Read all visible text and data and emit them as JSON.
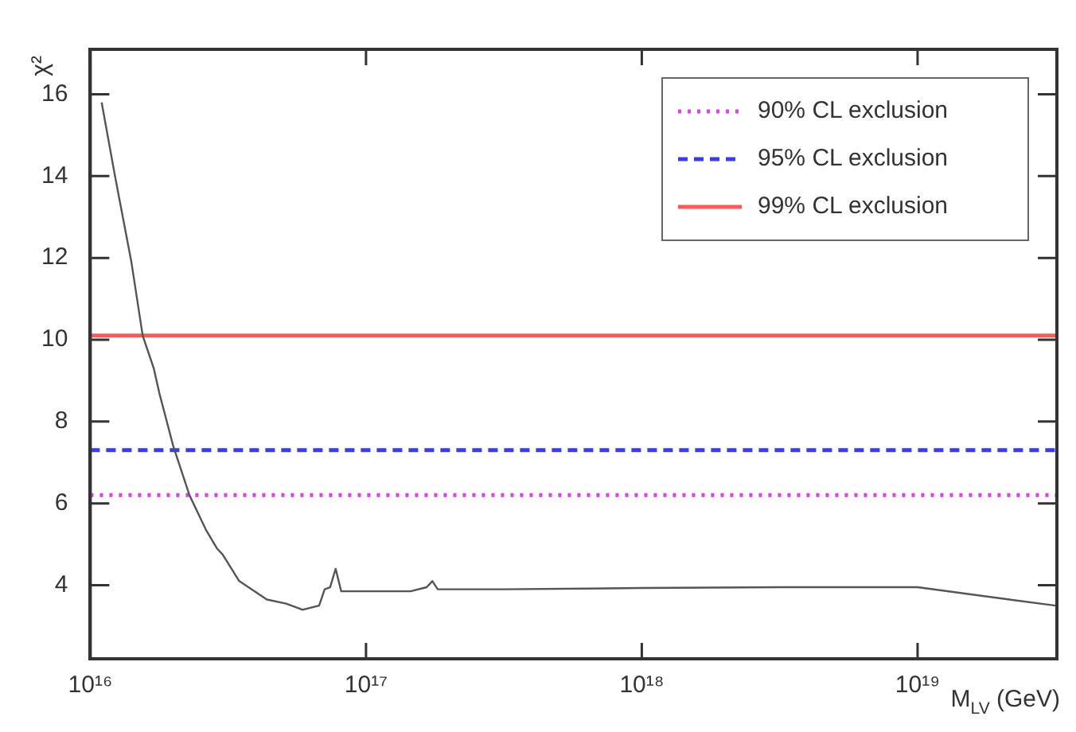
{
  "chart_data": {
    "type": "line",
    "xlabel": "M$_{LV}$ (GeV)",
    "ylabel": "χ²",
    "log": "x",
    "xlim": [
      1e+16,
      3.2e+19
    ],
    "ylim": [
      2.2,
      17.1
    ],
    "xticks": [
      {
        "value": 1e+16,
        "label": "10¹⁶"
      },
      {
        "value": 1e+17,
        "label": "10¹⁷"
      },
      {
        "value": 1e+18,
        "label": "10¹⁸"
      },
      {
        "value": 1e+19,
        "label": "10¹⁹"
      }
    ],
    "yticks": [
      4,
      6,
      8,
      10,
      12,
      14,
      16
    ],
    "grid": false,
    "legend": "top right",
    "marker": "none",
    "series": [
      {
        "color": "#555555",
        "line_style": "solid",
        "x": [
          1.1e+16,
          1.23e+16,
          1.41e+16,
          1.55e+16,
          1.7e+16,
          1.78e+16,
          2e+16,
          2.29e+16,
          2.63e+16,
          2.88e+16,
          3.02e+16,
          3.47e+16,
          4.37e+16,
          5.13e+16,
          5.89e+16,
          6.76e+16,
          7.08e+16,
          7.41e+16,
          7.76e+16,
          8.13e+16,
          1.07e+17,
          1.45e+17,
          1.66e+17,
          1.74e+17,
          1.82e+17,
          3.16e+17,
          1e+18,
          3.16e+18,
          1e+19,
          3.16e+19
        ],
        "values": [
          15.8,
          14.0,
          11.9,
          10.1,
          9.3,
          8.7,
          7.4,
          6.2,
          5.35,
          4.9,
          4.75,
          4.1,
          3.65,
          3.55,
          3.4,
          3.5,
          3.9,
          3.95,
          4.4,
          3.85,
          3.85,
          3.85,
          3.95,
          4.1,
          3.9,
          3.9,
          3.93,
          3.95,
          3.95,
          3.5
        ]
      },
      {
        "name": "90% CL exclusion",
        "color": "#e040f0",
        "line_style": "dotted",
        "x": [
          1e+16,
          3.2e+19
        ],
        "values": [
          6.2,
          6.2
        ]
      },
      {
        "name": "95% CL exclusion",
        "color": "#3a3af0",
        "line_style": "dashed",
        "x": [
          1e+16,
          3.2e+19
        ],
        "values": [
          7.3,
          7.3
        ]
      },
      {
        "name": "99% CL exclusion",
        "color": "#ff5a5a",
        "line_style": "solid",
        "x": [
          1e+16,
          3.2e+19
        ],
        "values": [
          10.1,
          10.1
        ]
      }
    ]
  }
}
